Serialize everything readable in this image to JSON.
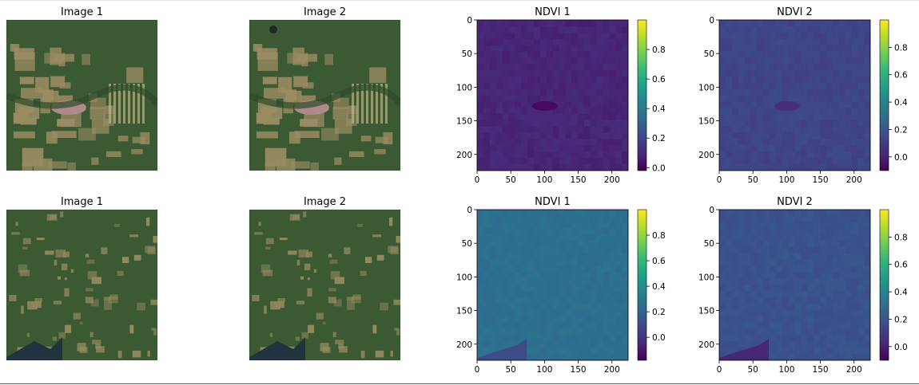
{
  "figure": {
    "rows": [
      {
        "panels": [
          {
            "kind": "photo",
            "title": "Image 1",
            "scene": "scene-a",
            "variant": 1
          },
          {
            "kind": "photo",
            "title": "Image 2",
            "scene": "scene-a",
            "variant": 2
          },
          {
            "kind": "ndvi",
            "title": "NDVI 1",
            "chart_index": 0
          },
          {
            "kind": "ndvi",
            "title": "NDVI 2",
            "chart_index": 1
          }
        ]
      },
      {
        "panels": [
          {
            "kind": "photo",
            "title": "Image 1",
            "scene": "scene-b",
            "variant": 1
          },
          {
            "kind": "photo",
            "title": "Image 2",
            "scene": "scene-b",
            "variant": 2
          },
          {
            "kind": "ndvi",
            "title": "NDVI 1",
            "chart_index": 2
          },
          {
            "kind": "ndvi",
            "title": "NDVI 2",
            "chart_index": 3
          }
        ]
      }
    ]
  },
  "colors": {
    "photo_forest": "#3b5a33",
    "photo_clearing": "#9a8c63",
    "photo_lake": "#b08a8a",
    "photo_water": "#1f3340",
    "viridis": [
      "#440154",
      "#482878",
      "#3e4989",
      "#31688e",
      "#26828e",
      "#1f9e89",
      "#35b779",
      "#6ece58",
      "#b5de2b",
      "#fde725"
    ]
  },
  "chart_data": [
    {
      "type": "heatmap",
      "title": "NDVI 1",
      "xticks": [
        "0",
        "50",
        "100",
        "150",
        "200"
      ],
      "yticks": [
        "0",
        "50",
        "100",
        "150",
        "200"
      ],
      "xlim": [
        0,
        224
      ],
      "ylim": [
        224,
        0
      ],
      "colorbar": {
        "vmin": -0.02,
        "vmax": 1.0,
        "ticks": [
          "0.0",
          "0.2",
          "0.4",
          "0.6",
          "0.8"
        ],
        "tick_values": [
          0.0,
          0.2,
          0.4,
          0.6,
          0.8
        ]
      },
      "typical_value": 0.09
    },
    {
      "type": "heatmap",
      "title": "NDVI 2",
      "xticks": [
        "0",
        "50",
        "100",
        "150",
        "200"
      ],
      "yticks": [
        "0",
        "50",
        "100",
        "150",
        "200"
      ],
      "xlim": [
        0,
        224
      ],
      "ylim": [
        224,
        0
      ],
      "colorbar": {
        "vmin": -0.1,
        "vmax": 1.0,
        "ticks": [
          "0.0",
          "0.2",
          "0.4",
          "0.6",
          "0.8"
        ],
        "tick_values": [
          0.0,
          0.2,
          0.4,
          0.6,
          0.8
        ]
      },
      "typical_value": 0.13
    },
    {
      "type": "heatmap",
      "title": "NDVI 1",
      "xticks": [
        "0",
        "50",
        "100",
        "150",
        "200"
      ],
      "yticks": [
        "0",
        "50",
        "100",
        "150",
        "200"
      ],
      "xlim": [
        0,
        224
      ],
      "ylim": [
        224,
        0
      ],
      "colorbar": {
        "vmin": -0.18,
        "vmax": 1.0,
        "ticks": [
          "0.0",
          "0.2",
          "0.4",
          "0.6",
          "0.8"
        ],
        "tick_values": [
          0.0,
          0.2,
          0.4,
          0.6,
          0.8
        ]
      },
      "typical_value": 0.25
    },
    {
      "type": "heatmap",
      "title": "NDVI 2",
      "xticks": [
        "0",
        "50",
        "100",
        "150",
        "200"
      ],
      "yticks": [
        "0",
        "50",
        "100",
        "150",
        "200"
      ],
      "xlim": [
        0,
        224
      ],
      "ylim": [
        224,
        0
      ],
      "colorbar": {
        "vmin": -0.1,
        "vmax": 1.0,
        "ticks": [
          "0.0",
          "0.2",
          "0.4",
          "0.6",
          "0.8"
        ],
        "tick_values": [
          0.0,
          0.2,
          0.4,
          0.6,
          0.8
        ]
      },
      "typical_value": 0.18
    }
  ]
}
